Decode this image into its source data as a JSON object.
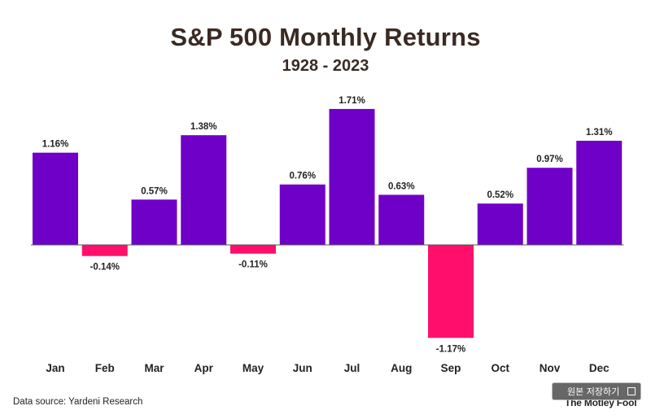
{
  "chart_data": {
    "type": "bar",
    "title": "S&P 500 Monthly Returns",
    "subtitle": "1928 - 2023",
    "categories": [
      "Jan",
      "Feb",
      "Mar",
      "Apr",
      "May",
      "Jun",
      "Jul",
      "Aug",
      "Sep",
      "Oct",
      "Nov",
      "Dec"
    ],
    "values": [
      1.16,
      -0.14,
      0.57,
      1.38,
      -0.11,
      0.76,
      1.71,
      0.63,
      -1.17,
      0.52,
      0.97,
      1.31
    ],
    "value_labels": [
      "1.16%",
      "-0.14%",
      "0.57%",
      "1.38%",
      "-0.11%",
      "0.76%",
      "1.71%",
      "0.63%",
      "-1.17%",
      "0.52%",
      "0.97%",
      "1.31%"
    ],
    "positive_color": "#6f00c8",
    "negative_color": "#ff0f6b",
    "ylim": [
      -1.2,
      1.8
    ],
    "grid": false,
    "legend": "none"
  },
  "footer": {
    "source": "Data source: Yardeni Research",
    "logo": "The Motley Fool"
  },
  "overlay": {
    "button_label": "원본 저장하기"
  }
}
